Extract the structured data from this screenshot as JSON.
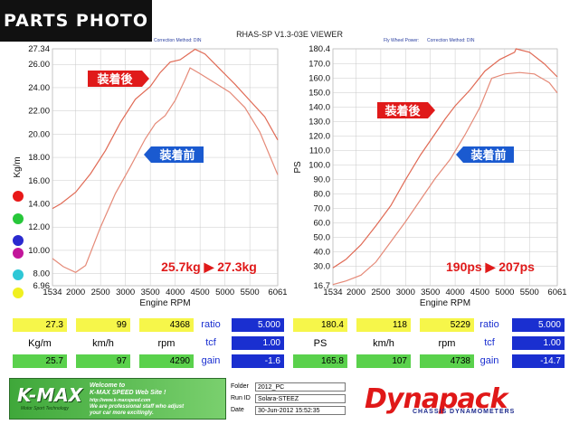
{
  "badge": "PARTS PHOTO",
  "viewer_title": "RHAS-SP V1.3-03E VIEWER",
  "left_meta": "Correction Method: DIN",
  "right_meta1": "Fly Wheel Power:",
  "right_meta2": "Correction Method: DIN",
  "colors": {
    "after": "#e06a55",
    "before": "#e58a78",
    "grid": "#c9c9c9",
    "label_red": "#e01a1a",
    "label_blue": "#1a5ad0"
  },
  "legend_dot_colors": [
    "#e81818",
    "#27c73a",
    "#2a2acf",
    "#c2169a",
    "#2ec7d6",
    "#f0f020"
  ],
  "chart_data": [
    {
      "type": "line",
      "xlabel": "Engine RPM",
      "ylabel": "Kg/m",
      "xlim": [
        1534,
        6061
      ],
      "ylim": [
        6.96,
        27.34
      ],
      "x_ticks": [
        "1534",
        "2000",
        "2500",
        "3000",
        "3500",
        "4000",
        "4500",
        "5000",
        "5500",
        "6061"
      ],
      "y_ticks": [
        "27.34",
        "26.00",
        "24.00",
        "22.00",
        "20.00",
        "18.00",
        "16.00",
        "14.00",
        "12.00",
        "10.00",
        "8.00",
        "6.96"
      ],
      "annotation": "25.7kg ▶ 27.3kg",
      "label_after": "装着後",
      "label_before": "装着前",
      "series": [
        {
          "name": "装着後",
          "points": [
            [
              1534,
              13.6
            ],
            [
              1700,
              14.0
            ],
            [
              2000,
              15.0
            ],
            [
              2300,
              16.6
            ],
            [
              2600,
              18.6
            ],
            [
              2900,
              21.0
            ],
            [
              3200,
              23.0
            ],
            [
              3500,
              24.1
            ],
            [
              3700,
              25.3
            ],
            [
              3900,
              26.2
            ],
            [
              4100,
              26.4
            ],
            [
              4300,
              27.0
            ],
            [
              4400,
              27.3
            ],
            [
              4600,
              26.9
            ],
            [
              4900,
              25.6
            ],
            [
              5200,
              24.3
            ],
            [
              5500,
              22.9
            ],
            [
              5800,
              21.5
            ],
            [
              6061,
              19.5
            ]
          ]
        },
        {
          "name": "装着前",
          "points": [
            [
              1534,
              9.3
            ],
            [
              1750,
              8.6
            ],
            [
              2000,
              8.1
            ],
            [
              2200,
              8.7
            ],
            [
              2500,
              12.0
            ],
            [
              2800,
              14.9
            ],
            [
              3100,
              17.2
            ],
            [
              3400,
              19.6
            ],
            [
              3600,
              20.9
            ],
            [
              3800,
              21.6
            ],
            [
              4000,
              22.9
            ],
            [
              4200,
              24.7
            ],
            [
              4300,
              25.7
            ],
            [
              4500,
              25.2
            ],
            [
              4800,
              24.4
            ],
            [
              5100,
              23.6
            ],
            [
              5400,
              22.3
            ],
            [
              5700,
              20.2
            ],
            [
              6061,
              16.5
            ]
          ]
        }
      ]
    },
    {
      "type": "line",
      "xlabel": "Engine RPM",
      "ylabel": "PS",
      "xlim": [
        1534,
        6061
      ],
      "ylim": [
        16.7,
        180.4
      ],
      "x_ticks": [
        "1534",
        "2000",
        "2500",
        "3000",
        "3500",
        "4000",
        "4500",
        "5000",
        "5500",
        "6061"
      ],
      "y_ticks": [
        "180.4",
        "170.0",
        "160.0",
        "150.0",
        "140.0",
        "130.0",
        "120.0",
        "110.0",
        "100.0",
        "90.0",
        "80.0",
        "70.0",
        "60.0",
        "50.0",
        "40.0",
        "30.0",
        "16.7"
      ],
      "annotation": "190ps ▶ 207ps",
      "label_after": "装着後",
      "label_before": "装着前",
      "series": [
        {
          "name": "装着後",
          "points": [
            [
              1534,
              29.0
            ],
            [
              1800,
              35.0
            ],
            [
              2100,
              45.0
            ],
            [
              2400,
              58.0
            ],
            [
              2700,
              72.0
            ],
            [
              3000,
              90.0
            ],
            [
              3300,
              107.0
            ],
            [
              3600,
              122.0
            ],
            [
              3800,
              132.0
            ],
            [
              4000,
              141.0
            ],
            [
              4300,
              152.0
            ],
            [
              4600,
              165.0
            ],
            [
              4900,
              173.0
            ],
            [
              5200,
              178.0
            ],
            [
              5229,
              180.4
            ],
            [
              5500,
              178.0
            ],
            [
              5800,
              170.0
            ],
            [
              6061,
              161.0
            ]
          ]
        },
        {
          "name": "装着前",
          "points": [
            [
              1534,
              17.5
            ],
            [
              1800,
              20.0
            ],
            [
              2100,
              24.0
            ],
            [
              2400,
              33.0
            ],
            [
              2700,
              47.0
            ],
            [
              3000,
              61.0
            ],
            [
              3300,
              76.0
            ],
            [
              3600,
              91.0
            ],
            [
              3900,
              104.0
            ],
            [
              4200,
              121.0
            ],
            [
              4500,
              140.0
            ],
            [
              4738,
              160.0
            ],
            [
              5000,
              163.0
            ],
            [
              5300,
              164.0
            ],
            [
              5600,
              163.0
            ],
            [
              5900,
              157.0
            ],
            [
              6061,
              150.0
            ]
          ]
        }
      ]
    }
  ],
  "left_table": {
    "row1": [
      "27.3",
      "99",
      "4368"
    ],
    "headers": [
      "Kg/m",
      "km/h",
      "rpm"
    ],
    "row2": [
      "25.7",
      "97",
      "4290"
    ],
    "side_labels": [
      "ratio",
      "tcf",
      "gain"
    ],
    "side_values": [
      "5.000",
      "1.00",
      "-1.6"
    ]
  },
  "right_table": {
    "row1": [
      "180.4",
      "118",
      "5229"
    ],
    "headers": [
      "PS",
      "km/h",
      "rpm"
    ],
    "row2": [
      "165.8",
      "107",
      "4738"
    ],
    "side_labels": [
      "ratio",
      "tcf",
      "gain"
    ],
    "side_values": [
      "5.000",
      "1.00",
      "-14.7"
    ]
  },
  "footer": {
    "kmax_logo": "K-MAX",
    "kmax_sub": "Motor Sport Technology",
    "kmax_line1": "Welcome to",
    "kmax_line2": "K-MAX SPEED Web Site !",
    "kmax_line3": "http://www.k-maxspeed.com",
    "kmax_line4": "We are professional staff who adjust",
    "kmax_line5": "your car more excitingly.",
    "folder_label": "Folder",
    "folder_value": "2012_PC",
    "runid_label": "Run ID",
    "runid_value": "Solara-STEEZ",
    "date_label": "Date",
    "date_value": "30-Jun-2012   15:52:35",
    "dyna_logo": "Dynapack",
    "dyna_sub": "CHASSIS DYNAMOMETERS"
  }
}
